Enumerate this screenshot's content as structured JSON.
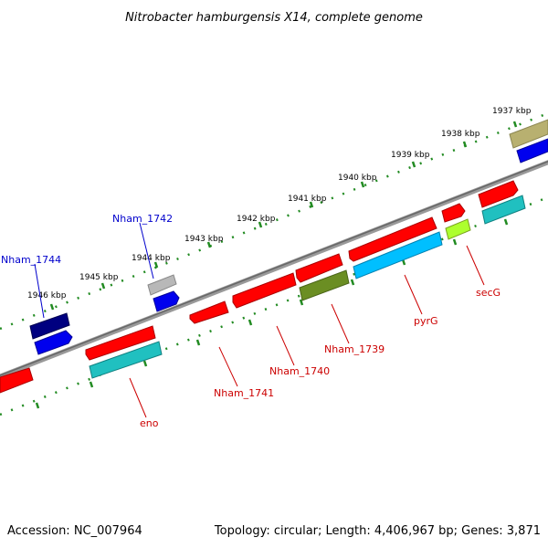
{
  "title": "Nitrobacter hamburgensis X14, complete genome",
  "footer": {
    "accession": "Accession: NC_007964",
    "topology": "Topology: circular; Length: 4,406,967 bp; Genes: 3,871"
  },
  "ticks": [
    {
      "label": "1937 kbp"
    },
    {
      "label": "1938 kbp"
    },
    {
      "label": "1939 kbp"
    },
    {
      "label": "1940 kbp"
    },
    {
      "label": "1941 kbp"
    },
    {
      "label": "1942 kbp"
    },
    {
      "label": "1943 kbp"
    },
    {
      "label": "1944 kbp"
    },
    {
      "label": "1945 kbp"
    },
    {
      "label": "1946 kbp"
    }
  ],
  "gene_labels": [
    {
      "name": "Nham_1742",
      "color": "#0000cc"
    },
    {
      "name": "Nham_1744",
      "color": "#0000cc"
    },
    {
      "name": "secG",
      "color": "#cc0000"
    },
    {
      "name": "pyrG",
      "color": "#cc0000"
    },
    {
      "name": "Nham_1739",
      "color": "#cc0000"
    },
    {
      "name": "Nham_1740",
      "color": "#cc0000"
    },
    {
      "name": "Nham_1741",
      "color": "#cc0000"
    },
    {
      "name": "eno",
      "color": "#cc0000"
    }
  ],
  "colors": {
    "backbone": "#808080",
    "tick_ring": "#228b22",
    "red": "#ff0000",
    "blue": "#0000ff",
    "navy": "#000080",
    "cyan": "#20c0c0",
    "skyblue": "#00bfff",
    "olive": "#6b8e23",
    "khaki": "#b8b070",
    "lime": "#adff2f",
    "silver": "#b0b0b0"
  }
}
